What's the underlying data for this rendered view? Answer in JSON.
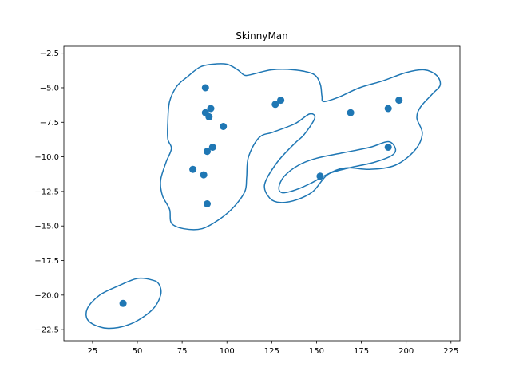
{
  "chart_data": {
    "type": "scatter",
    "title": "SkinnyMan",
    "xlabel": "",
    "ylabel": "",
    "xlim": [
      9,
      230
    ],
    "ylim": [
      -23.3,
      -2
    ],
    "xticks": [
      25,
      50,
      75,
      100,
      125,
      150,
      175,
      200,
      225
    ],
    "yticks": [
      -22.5,
      -20.0,
      -17.5,
      -15.0,
      -12.5,
      -10.0,
      -7.5,
      -5.0,
      -2.5
    ],
    "xtick_labels": [
      "25",
      "50",
      "75",
      "100",
      "125",
      "150",
      "175",
      "200",
      "225"
    ],
    "ytick_labels": [
      "−22.5",
      "−20.0",
      "−17.5",
      "−15.0",
      "−12.5",
      "−10.0",
      "−7.5",
      "−5.0",
      "−2.5"
    ],
    "grid": false,
    "color": "#1f77b4",
    "points": [
      {
        "x": 42,
        "y": -20.6
      },
      {
        "x": 88,
        "y": -5.0
      },
      {
        "x": 88,
        "y": -6.8
      },
      {
        "x": 90,
        "y": -7.1
      },
      {
        "x": 91,
        "y": -6.5
      },
      {
        "x": 98,
        "y": -7.8
      },
      {
        "x": 92,
        "y": -9.3
      },
      {
        "x": 89,
        "y": -9.6
      },
      {
        "x": 81,
        "y": -10.9
      },
      {
        "x": 87,
        "y": -11.3
      },
      {
        "x": 89,
        "y": -13.4
      },
      {
        "x": 127,
        "y": -6.2
      },
      {
        "x": 130,
        "y": -5.9
      },
      {
        "x": 152,
        "y": -11.4
      },
      {
        "x": 169,
        "y": -6.8
      },
      {
        "x": 190,
        "y": -6.5
      },
      {
        "x": 196,
        "y": -5.9
      },
      {
        "x": 190,
        "y": -9.3
      }
    ],
    "contours": [
      [
        [
          58,
          -18.9
        ],
        [
          50,
          -18.8
        ],
        [
          40,
          -19.3
        ],
        [
          29,
          -20.0
        ],
        [
          22,
          -21.0
        ],
        [
          23,
          -21.9
        ],
        [
          33,
          -22.4
        ],
        [
          46,
          -22.1
        ],
        [
          58,
          -21.1
        ],
        [
          63,
          -20.0
        ],
        [
          62,
          -19.2
        ]
      ],
      [
        [
          85,
          -3.5
        ],
        [
          78,
          -4.2
        ],
        [
          72,
          -4.9
        ],
        [
          68,
          -6.0
        ],
        [
          67,
          -7.5
        ],
        [
          67,
          -8.7
        ],
        [
          69,
          -9.4
        ],
        [
          66,
          -10.4
        ],
        [
          63,
          -11.7
        ],
        [
          64,
          -12.8
        ],
        [
          68,
          -13.8
        ],
        [
          69,
          -14.8
        ],
        [
          76,
          -15.2
        ],
        [
          86,
          -15.2
        ],
        [
          96,
          -14.5
        ],
        [
          104,
          -13.6
        ],
        [
          110,
          -12.5
        ],
        [
          111,
          -11.5
        ],
        [
          112,
          -10.0
        ],
        [
          118,
          -8.6
        ],
        [
          126,
          -8.2
        ],
        [
          138,
          -7.6
        ],
        [
          146,
          -6.9
        ],
        [
          149,
          -7.2
        ],
        [
          143,
          -8.4
        ],
        [
          138,
          -9.0
        ],
        [
          128,
          -10.4
        ],
        [
          121,
          -12.0
        ],
        [
          124,
          -13.0
        ],
        [
          130,
          -13.3
        ],
        [
          139,
          -13.1
        ],
        [
          148,
          -12.5
        ],
        [
          156,
          -11.3
        ],
        [
          166,
          -10.8
        ],
        [
          180,
          -10.9
        ],
        [
          194,
          -10.6
        ],
        [
          205,
          -9.5
        ],
        [
          209,
          -8.3
        ],
        [
          206,
          -7.2
        ],
        [
          208,
          -6.4
        ],
        [
          215,
          -5.4
        ],
        [
          219,
          -4.8
        ],
        [
          217,
          -4.1
        ],
        [
          210,
          -3.7
        ],
        [
          200,
          -3.9
        ],
        [
          187,
          -4.5
        ],
        [
          174,
          -5.0
        ],
        [
          162,
          -5.7
        ],
        [
          154,
          -6.0
        ],
        [
          153,
          -5.6
        ],
        [
          152,
          -4.7
        ],
        [
          148,
          -4.0
        ],
        [
          137,
          -3.7
        ],
        [
          125,
          -3.7
        ],
        [
          115,
          -4.0
        ],
        [
          110,
          -4.1
        ],
        [
          106,
          -3.7
        ],
        [
          100,
          -3.3
        ],
        [
          92,
          -3.3
        ]
      ],
      [
        [
          190,
          -8.9
        ],
        [
          180,
          -9.3
        ],
        [
          165,
          -9.7
        ],
        [
          150,
          -10.1
        ],
        [
          140,
          -10.6
        ],
        [
          132,
          -11.4
        ],
        [
          129,
          -12.2
        ],
        [
          131,
          -12.6
        ],
        [
          138,
          -12.4
        ],
        [
          147,
          -11.9
        ],
        [
          157,
          -11.2
        ],
        [
          168,
          -10.8
        ],
        [
          182,
          -10.4
        ],
        [
          192,
          -9.9
        ],
        [
          194,
          -9.4
        ]
      ]
    ]
  }
}
